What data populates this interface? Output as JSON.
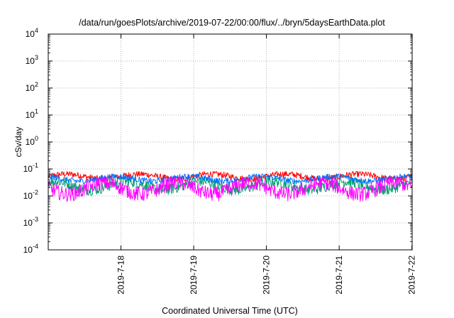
{
  "chart_data": {
    "type": "line",
    "title": "/data/run/goesPlots/archive/2019-07-22/00:00/flux/../bryn/5daysEarthData.plot",
    "xlabel": "Coordinated Universal Time (UTC)",
    "ylabel": "cSv/day",
    "xlim": [
      "2019-07-17T00:00",
      "2019-07-22T00:05"
    ],
    "ylim": [
      0.0001,
      10000
    ],
    "yscale": "log",
    "grid": true,
    "x_ticks": [
      "2019-7-18",
      "2019-7-19",
      "2019-7-20",
      "2019-7-21",
      "2019-7-22"
    ],
    "y_ticks": [
      {
        "value": 0.0001,
        "base": "10",
        "exp": "-4"
      },
      {
        "value": 0.001,
        "base": "10",
        "exp": "-3"
      },
      {
        "value": 0.01,
        "base": "10",
        "exp": "-2"
      },
      {
        "value": 0.1,
        "base": "10",
        "exp": "-1"
      },
      {
        "value": 1,
        "base": "10",
        "exp": "0"
      },
      {
        "value": 10,
        "base": "10",
        "exp": "1"
      },
      {
        "value": 100,
        "base": "10",
        "exp": "2"
      },
      {
        "value": 1000,
        "base": "10",
        "exp": "3"
      },
      {
        "value": 10000,
        "base": "10",
        "exp": "4"
      }
    ],
    "series": [
      {
        "color": "#ff0000",
        "range": [
          0.03,
          0.08
        ]
      },
      {
        "color": "#00a070",
        "range": [
          0.009,
          0.05
        ]
      },
      {
        "color": "#0070ff",
        "range": [
          0.025,
          0.065
        ]
      },
      {
        "color": "#ff00ff",
        "range": [
          0.005,
          0.05
        ]
      }
    ]
  }
}
